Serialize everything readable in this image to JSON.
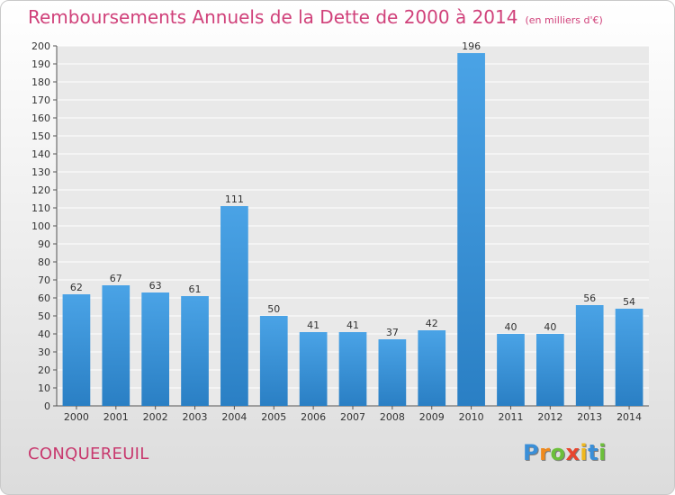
{
  "title": "Remboursements Annuels de la Dette de 2000 à 2014",
  "unit_label": "(en milliers d'€)",
  "commune": "CONQUEREUIL",
  "logo": {
    "letters": [
      "P",
      "r",
      "o",
      "x",
      "i",
      "t",
      "i"
    ],
    "colors": [
      "#3a8fd8",
      "#f08a1c",
      "#6cbf3a",
      "#e8452e",
      "#f0b81c",
      "#3a8fd8",
      "#6cbf3a"
    ]
  },
  "colors": {
    "bar": "#4aa3e6",
    "bar_dark": "#2a7fc4",
    "title": "#d0417a"
  },
  "chart_data": {
    "type": "bar",
    "categories": [
      "2000",
      "2001",
      "2002",
      "2003",
      "2004",
      "2005",
      "2006",
      "2007",
      "2008",
      "2009",
      "2010",
      "2011",
      "2012",
      "2013",
      "2014"
    ],
    "values": [
      62,
      67,
      63,
      61,
      111,
      50,
      41,
      41,
      37,
      42,
      196,
      40,
      40,
      56,
      54
    ],
    "title": "Remboursements Annuels de la Dette de 2000 à 2014",
    "xlabel": "",
    "ylabel": "",
    "ylim": [
      0,
      200
    ],
    "yticks": [
      0,
      10,
      20,
      30,
      40,
      50,
      60,
      70,
      80,
      90,
      100,
      110,
      120,
      130,
      140,
      150,
      160,
      170,
      180,
      190,
      200
    ],
    "grid": true,
    "legend": "none"
  }
}
